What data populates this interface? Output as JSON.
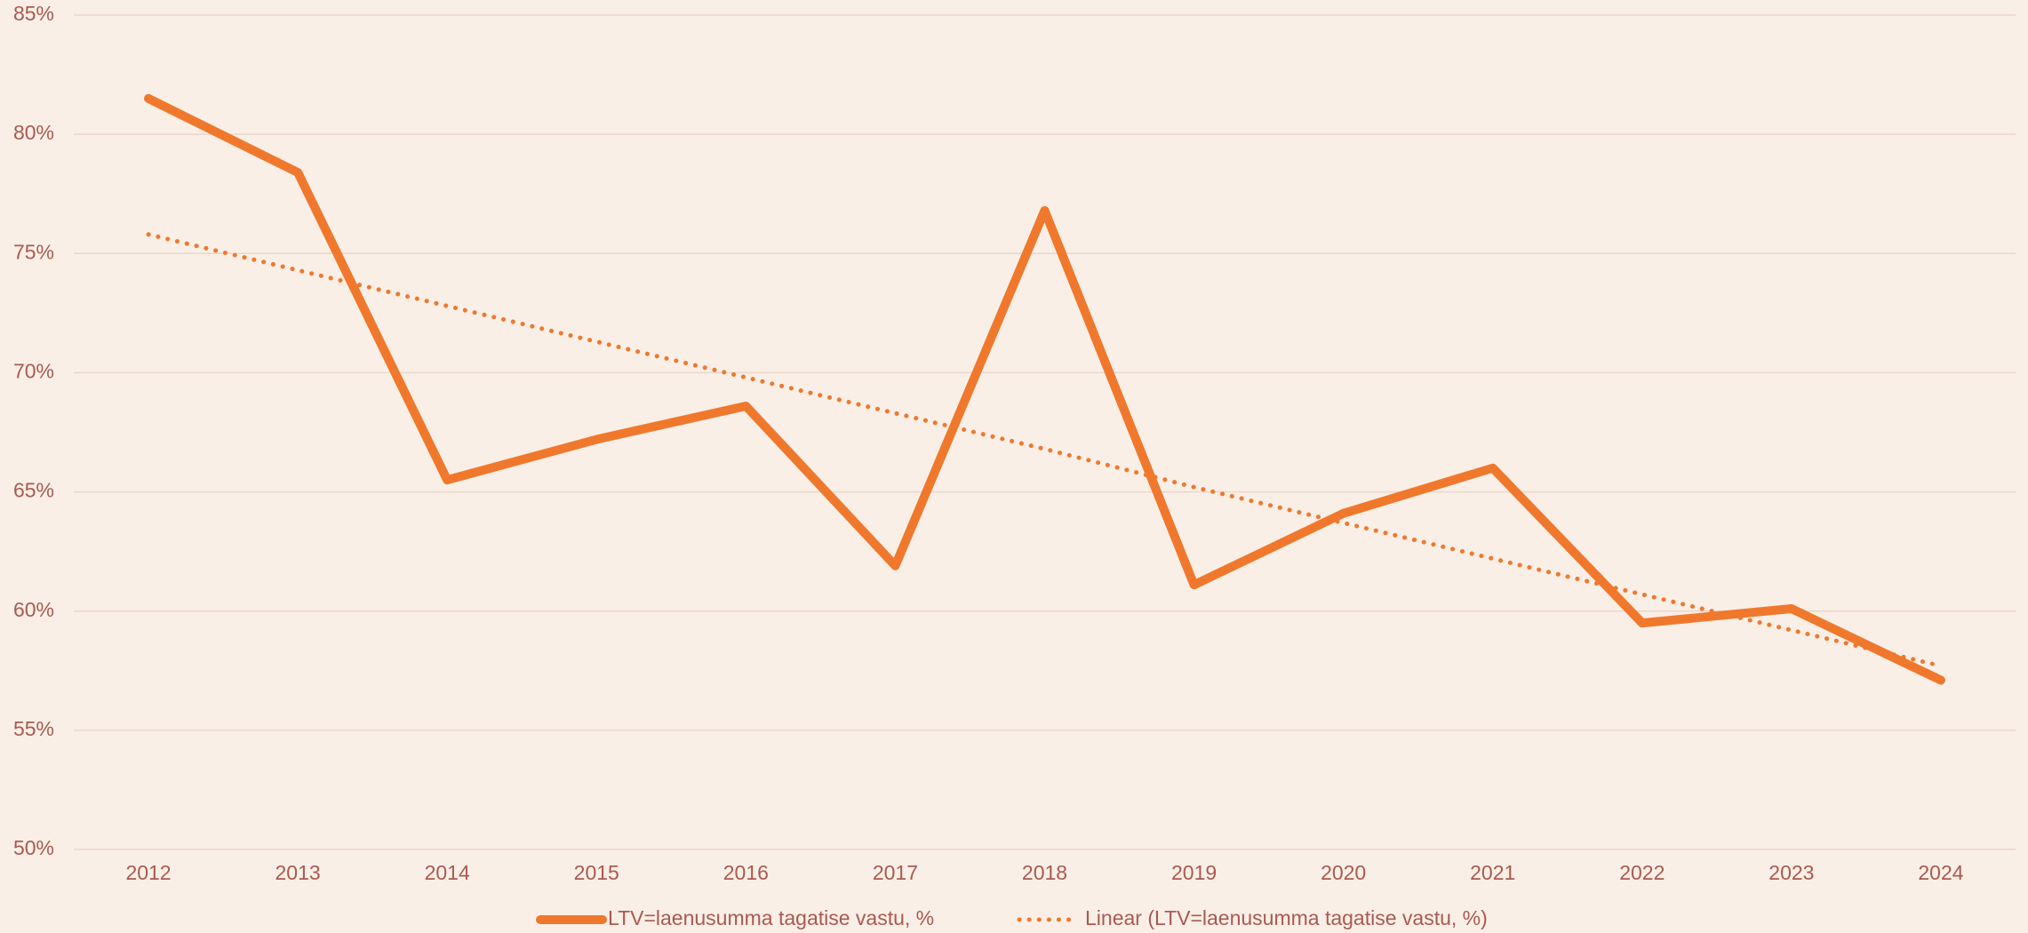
{
  "chart_data": {
    "type": "line",
    "categories": [
      "2012",
      "2013",
      "2014",
      "2015",
      "2016",
      "2017",
      "2018",
      "2019",
      "2020",
      "2021",
      "2022",
      "2023",
      "2024"
    ],
    "series": [
      {
        "name": "LTV=laenusumma tagatise vastu, %",
        "color": "#f0782d",
        "style": "solid",
        "values": [
          81.5,
          78.4,
          65.5,
          67.2,
          68.6,
          61.9,
          76.8,
          61.1,
          64.1,
          66.0,
          59.5,
          60.1,
          57.1
        ]
      },
      {
        "name": "Linear (LTV=laenusumma tagatise vastu, %)",
        "color": "#f0782d",
        "style": "dotted",
        "values": [
          75.8,
          74.3,
          72.8,
          71.3,
          69.8,
          68.3,
          66.8,
          65.2,
          63.7,
          62.2,
          60.7,
          59.2,
          57.7
        ]
      }
    ],
    "ylim": [
      50,
      85
    ],
    "yticks": [
      {
        "value": 50,
        "label": "50%"
      },
      {
        "value": 55,
        "label": "55%"
      },
      {
        "value": 60,
        "label": "60%"
      },
      {
        "value": 65,
        "label": "65%"
      },
      {
        "value": 70,
        "label": "70%"
      },
      {
        "value": 75,
        "label": "75%"
      },
      {
        "value": 80,
        "label": "80%"
      },
      {
        "value": 85,
        "label": "85%"
      }
    ],
    "grid": true,
    "legend": "bottom"
  }
}
